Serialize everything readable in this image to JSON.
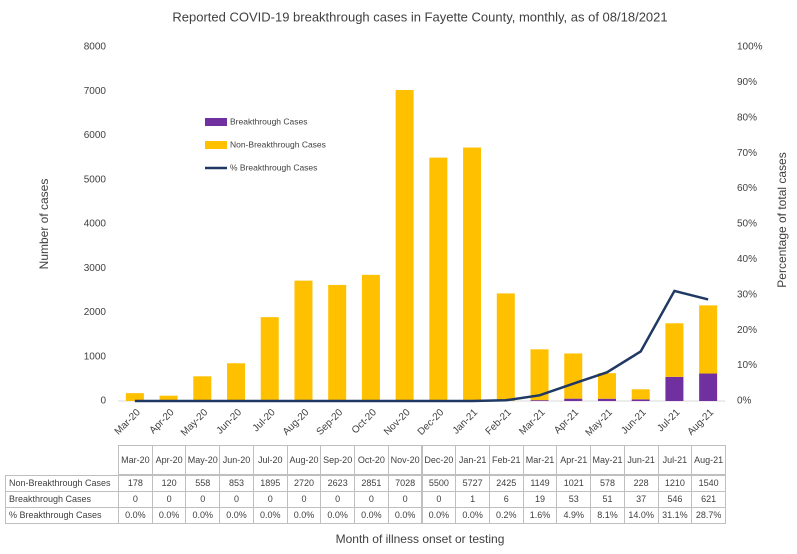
{
  "chart_data": {
    "type": "bar",
    "title": "Reported COVID-19 breakthrough cases in Fayette County, monthly, as of 08/18/2021",
    "x_label": "Month of illness onset or testing",
    "y_label": "Number of cases",
    "y2_label": "Percentage of total cases",
    "categories": [
      "Mar-20",
      "Apr-20",
      "May-20",
      "Jun-20",
      "Jul-20",
      "Aug-20",
      "Sep-20",
      "Oct-20",
      "Nov-20",
      "Dec-20",
      "Jan-21",
      "Feb-21",
      "Mar-21",
      "Apr-21",
      "May-21",
      "Jun-21",
      "Jul-21",
      "Aug-21"
    ],
    "stacked": true,
    "series": [
      {
        "name": "Breakthrough Cases",
        "color": "#7030a0",
        "values": [
          0,
          0,
          0,
          0,
          0,
          0,
          0,
          0,
          0,
          0,
          1,
          6,
          19,
          53,
          51,
          37,
          546,
          621
        ]
      },
      {
        "name": "Non-Breakthrough Cases",
        "color": "#ffc000",
        "values": [
          178,
          120,
          558,
          853,
          1895,
          2720,
          2623,
          2851,
          7028,
          5500,
          5727,
          2425,
          1149,
          1021,
          578,
          228,
          1210,
          1540
        ]
      },
      {
        "name": "% Breakthrough Cases",
        "color": "#1f3864",
        "type": "line",
        "axis": "y2",
        "values": [
          0,
          0,
          0,
          0,
          0,
          0,
          0,
          0,
          0,
          0,
          0,
          0.2,
          1.6,
          4.9,
          8.1,
          14.0,
          31.1,
          28.7
        ],
        "value_labels": [
          "0.0%",
          "0.0%",
          "0.0%",
          "0.0%",
          "0.0%",
          "0.0%",
          "0.0%",
          "0.0%",
          "0.0%",
          "0.0%",
          "0.0%",
          "0.2%",
          "1.6%",
          "4.9%",
          "8.1%",
          "14.0%",
          "31.1%",
          "28.7%"
        ]
      }
    ],
    "ylim": [
      0,
      8000
    ],
    "yticks": [
      0,
      1000,
      2000,
      3000,
      4000,
      5000,
      6000,
      7000,
      8000
    ],
    "y2lim": [
      0,
      100
    ],
    "y2ticks": [
      {
        "value": 0,
        "label": "0%"
      },
      {
        "value": 10,
        "label": "10%"
      },
      {
        "value": 20,
        "label": "20%"
      },
      {
        "value": 30,
        "label": "30%"
      },
      {
        "value": 40,
        "label": "40%"
      },
      {
        "value": 50,
        "label": "50%"
      },
      {
        "value": 60,
        "label": "60%"
      },
      {
        "value": 70,
        "label": "70%"
      },
      {
        "value": 80,
        "label": "80%"
      },
      {
        "value": 90,
        "label": "90%"
      },
      {
        "value": 100,
        "label": "100%"
      }
    ],
    "legend": "upper left"
  }
}
